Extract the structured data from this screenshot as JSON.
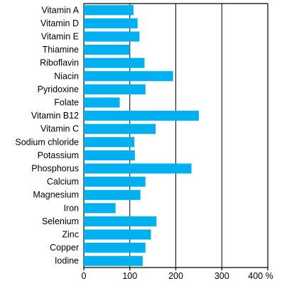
{
  "chart_data": {
    "type": "bar",
    "orientation": "horizontal",
    "title": "",
    "xlabel": "",
    "ylabel": "",
    "xlim": [
      0,
      400
    ],
    "x_ticks": [
      0,
      100,
      200,
      300,
      400
    ],
    "x_tick_labels": [
      "0",
      "100",
      "200",
      "300",
      "400 %"
    ],
    "grid": "vertical",
    "bar_color": "#00b0f0",
    "categories": [
      "Vitamin A",
      "Vitamin D",
      "Vitamin E",
      "Thiamine",
      "Riboflavin",
      "Niacin",
      "Pyridoxine",
      "Folate",
      "Vitamin B12",
      "Vitamin C",
      "Sodium chloride",
      "Potassium",
      "Phosphorus",
      "Calcium",
      "Magnesium",
      "Iron",
      "Selenium",
      "Zinc",
      "Copper",
      "Iodine"
    ],
    "values": [
      108,
      117,
      121,
      100,
      132,
      194,
      134,
      78,
      250,
      156,
      110,
      111,
      234,
      134,
      123,
      69,
      158,
      146,
      134,
      128
    ]
  }
}
